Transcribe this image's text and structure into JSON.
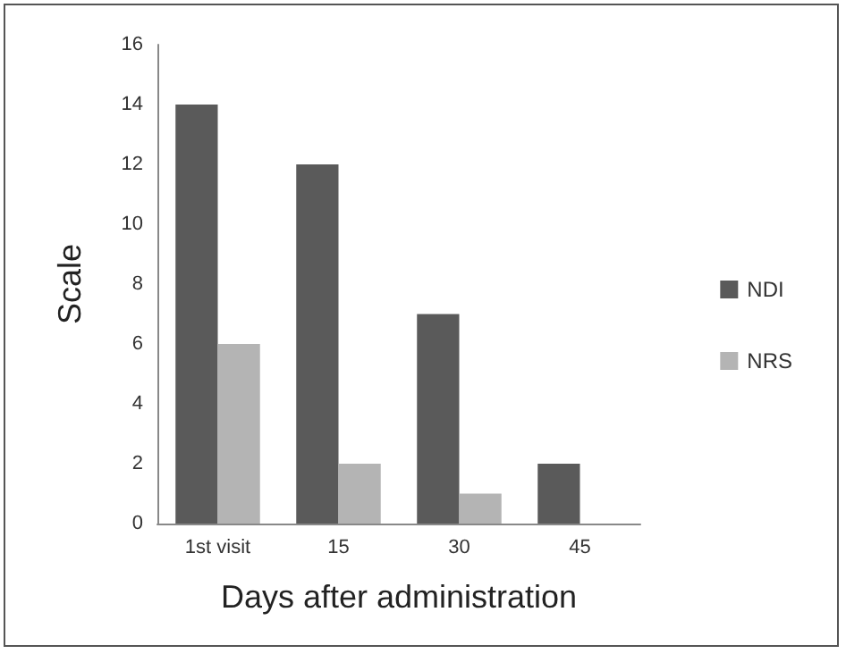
{
  "chart_data": {
    "type": "bar",
    "xlabel": "Days after administration",
    "ylabel": "Scale",
    "categories": [
      "1st visit",
      "15",
      "30",
      "45"
    ],
    "series": [
      {
        "name": "NDI",
        "color": "#5a5a5a",
        "values": [
          14,
          12,
          7,
          2
        ]
      },
      {
        "name": "NRS",
        "color": "#b4b4b4",
        "values": [
          6,
          2,
          1,
          null
        ]
      }
    ],
    "ylim": [
      0,
      16
    ],
    "yticks": [
      0,
      2,
      4,
      6,
      8,
      10,
      12,
      14,
      16
    ],
    "grid": false,
    "legend": "right"
  }
}
